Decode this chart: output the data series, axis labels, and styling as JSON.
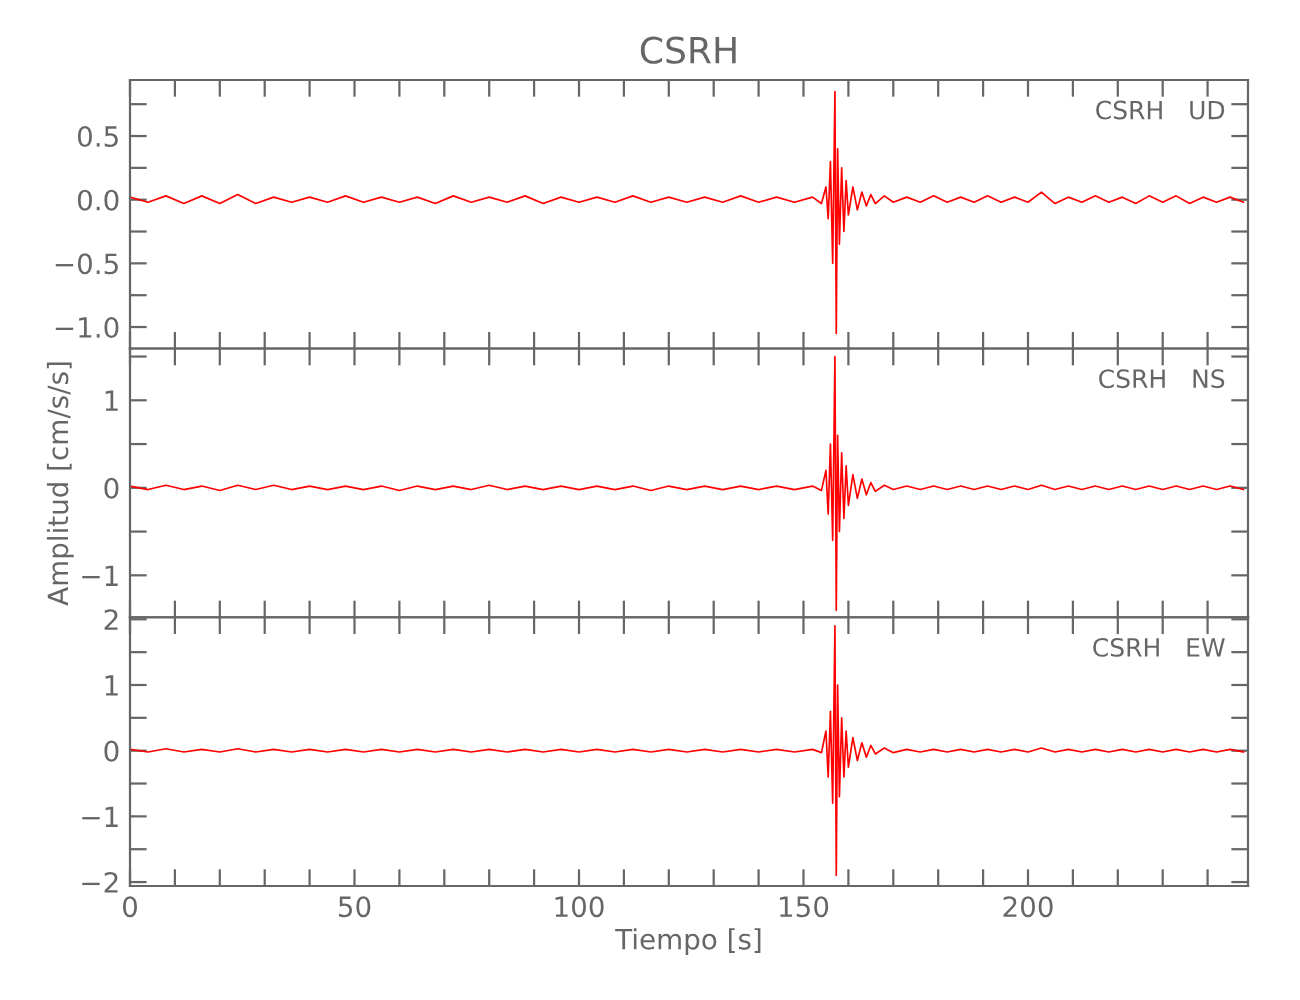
{
  "chart_data": [
    {
      "type": "line",
      "title": "CSRH",
      "tick_labels": "y",
      "grid": false,
      "legend": false,
      "annotations": [
        "CSRH   UD"
      ],
      "xlim": [
        0,
        249
      ],
      "xticks": [
        0,
        {
          "value": 10,
          "label": null
        },
        {
          "value": 20,
          "label": null
        },
        {
          "value": 30,
          "label": null
        },
        {
          "value": 40,
          "label": null
        },
        50,
        {
          "value": 60,
          "label": null
        },
        {
          "value": 70,
          "label": null
        },
        {
          "value": 80,
          "label": null
        },
        {
          "value": 90,
          "label": null
        },
        100,
        {
          "value": 110,
          "label": null
        },
        {
          "value": 120,
          "label": null
        },
        {
          "value": 130,
          "label": null
        },
        {
          "value": 140,
          "label": null
        },
        150,
        {
          "value": 160,
          "label": null
        },
        {
          "value": 170,
          "label": null
        },
        {
          "value": 180,
          "label": null
        },
        {
          "value": 190,
          "label": null
        },
        200,
        {
          "value": 210,
          "label": null
        },
        {
          "value": 220,
          "label": null
        },
        {
          "value": 230,
          "label": null
        },
        {
          "value": 240,
          "label": null
        }
      ],
      "ylim": [
        -1.17,
        0.94
      ],
      "yticks": [
        {
          "value": -1.0,
          "label": "−1.0"
        },
        {
          "value": -0.75,
          "label": null
        },
        {
          "value": -0.5,
          "label": "−0.5"
        },
        {
          "value": -0.25,
          "label": null
        },
        {
          "value": 0.0,
          "label": "0.0"
        },
        {
          "value": 0.25,
          "label": null
        },
        {
          "value": 0.5,
          "label": "0.5"
        },
        {
          "value": 0.75,
          "label": null
        }
      ],
      "series": [
        {
          "color": "#ff0000",
          "x": [
            0,
            4,
            8,
            12,
            16,
            20,
            24,
            28,
            32,
            36,
            40,
            44,
            48,
            52,
            56,
            60,
            64,
            68,
            72,
            76,
            80,
            84,
            88,
            92,
            96,
            100,
            104,
            108,
            112,
            116,
            120,
            124,
            128,
            132,
            136,
            140,
            144,
            148,
            152,
            154,
            155,
            155.5,
            156,
            156.5,
            157,
            157.3,
            157.6,
            158,
            158.5,
            159,
            159.5,
            160,
            161,
            162,
            163,
            164,
            165,
            166,
            168,
            170,
            173,
            176,
            179,
            182,
            185,
            188,
            191,
            194,
            197,
            200,
            203,
            206,
            209,
            212,
            215,
            218,
            221,
            224,
            227,
            230,
            233,
            236,
            239,
            242,
            245,
            248
          ],
          "values": [
            0.02,
            -0.02,
            0.03,
            -0.03,
            0.03,
            -0.03,
            0.04,
            -0.03,
            0.02,
            -0.02,
            0.02,
            -0.02,
            0.03,
            -0.02,
            0.02,
            -0.02,
            0.02,
            -0.03,
            0.03,
            -0.02,
            0.02,
            -0.02,
            0.03,
            -0.03,
            0.02,
            -0.02,
            0.02,
            -0.02,
            0.03,
            -0.02,
            0.02,
            -0.02,
            0.02,
            -0.02,
            0.03,
            -0.02,
            0.02,
            -0.02,
            0.02,
            -0.03,
            0.1,
            -0.15,
            0.3,
            -0.5,
            0.85,
            -1.05,
            0.4,
            -0.35,
            0.25,
            -0.25,
            0.15,
            -0.12,
            0.1,
            -0.08,
            0.06,
            -0.05,
            0.04,
            -0.03,
            0.03,
            -0.02,
            0.02,
            -0.02,
            0.03,
            -0.02,
            0.02,
            -0.02,
            0.03,
            -0.02,
            0.02,
            -0.02,
            0.06,
            -0.03,
            0.02,
            -0.02,
            0.03,
            -0.02,
            0.02,
            -0.03,
            0.03,
            -0.02,
            0.03,
            -0.03,
            0.02,
            -0.02,
            0.02,
            -0.02
          ]
        }
      ]
    },
    {
      "type": "line",
      "ylabel": "Amplitud [cm/s/s]",
      "tick_labels": "y",
      "grid": false,
      "legend": false,
      "annotations": [
        "CSRH   NS"
      ],
      "xlim": [
        0,
        249
      ],
      "xticks": [
        0,
        {
          "value": 10,
          "label": null
        },
        {
          "value": 20,
          "label": null
        },
        {
          "value": 30,
          "label": null
        },
        {
          "value": 40,
          "label": null
        },
        50,
        {
          "value": 60,
          "label": null
        },
        {
          "value": 70,
          "label": null
        },
        {
          "value": 80,
          "label": null
        },
        {
          "value": 90,
          "label": null
        },
        100,
        {
          "value": 110,
          "label": null
        },
        {
          "value": 120,
          "label": null
        },
        {
          "value": 130,
          "label": null
        },
        {
          "value": 140,
          "label": null
        },
        150,
        {
          "value": 160,
          "label": null
        },
        {
          "value": 170,
          "label": null
        },
        {
          "value": 180,
          "label": null
        },
        {
          "value": 190,
          "label": null
        },
        200,
        {
          "value": 210,
          "label": null
        },
        {
          "value": 220,
          "label": null
        },
        {
          "value": 230,
          "label": null
        },
        {
          "value": 240,
          "label": null
        }
      ],
      "ylim": [
        -1.48,
        1.59
      ],
      "yticks": [
        {
          "value": -1,
          "label": "−1"
        },
        {
          "value": -0.5,
          "label": null
        },
        0,
        {
          "value": 0.5,
          "label": null
        },
        1,
        {
          "value": 1.5,
          "label": null
        }
      ],
      "series": [
        {
          "color": "#ff0000",
          "x": [
            0,
            4,
            8,
            12,
            16,
            20,
            24,
            28,
            32,
            36,
            40,
            44,
            48,
            52,
            56,
            60,
            64,
            68,
            72,
            76,
            80,
            84,
            88,
            92,
            96,
            100,
            104,
            108,
            112,
            116,
            120,
            124,
            128,
            132,
            136,
            140,
            144,
            148,
            152,
            154,
            155,
            155.5,
            156,
            156.5,
            157,
            157.3,
            157.6,
            158,
            158.5,
            159,
            159.5,
            160,
            161,
            162,
            163,
            164,
            165,
            166,
            168,
            170,
            173,
            176,
            179,
            182,
            185,
            188,
            191,
            194,
            197,
            200,
            203,
            206,
            209,
            212,
            215,
            218,
            221,
            224,
            227,
            230,
            233,
            236,
            239,
            242,
            245,
            248
          ],
          "values": [
            0.02,
            -0.02,
            0.03,
            -0.02,
            0.02,
            -0.03,
            0.03,
            -0.02,
            0.03,
            -0.02,
            0.02,
            -0.02,
            0.02,
            -0.02,
            0.02,
            -0.03,
            0.02,
            -0.02,
            0.02,
            -0.02,
            0.03,
            -0.02,
            0.02,
            -0.02,
            0.02,
            -0.02,
            0.02,
            -0.02,
            0.02,
            -0.03,
            0.02,
            -0.02,
            0.02,
            -0.02,
            0.02,
            -0.02,
            0.02,
            -0.02,
            0.02,
            -0.03,
            0.2,
            -0.3,
            0.5,
            -0.6,
            1.5,
            -1.4,
            0.6,
            -0.5,
            0.4,
            -0.35,
            0.25,
            -0.2,
            0.15,
            -0.12,
            0.1,
            -0.08,
            0.06,
            -0.04,
            0.03,
            -0.02,
            0.02,
            -0.02,
            0.02,
            -0.02,
            0.02,
            -0.02,
            0.02,
            -0.02,
            0.02,
            -0.02,
            0.03,
            -0.02,
            0.02,
            -0.02,
            0.02,
            -0.02,
            0.02,
            -0.02,
            0.02,
            -0.02,
            0.02,
            -0.02,
            0.02,
            -0.02,
            0.02,
            -0.02
          ]
        }
      ]
    },
    {
      "type": "line",
      "xlabel": "Tiempo [s]",
      "grid": false,
      "legend": false,
      "annotations": [
        "CSRH   EW"
      ],
      "xlim": [
        0,
        249
      ],
      "xticks": [
        0,
        {
          "value": 10,
          "label": null
        },
        {
          "value": 20,
          "label": null
        },
        {
          "value": 30,
          "label": null
        },
        {
          "value": 40,
          "label": null
        },
        50,
        {
          "value": 60,
          "label": null
        },
        {
          "value": 70,
          "label": null
        },
        {
          "value": 80,
          "label": null
        },
        {
          "value": 90,
          "label": null
        },
        100,
        {
          "value": 110,
          "label": null
        },
        {
          "value": 120,
          "label": null
        },
        {
          "value": 130,
          "label": null
        },
        {
          "value": 140,
          "label": null
        },
        150,
        {
          "value": 160,
          "label": null
        },
        {
          "value": 170,
          "label": null
        },
        {
          "value": 180,
          "label": null
        },
        {
          "value": 190,
          "label": null
        },
        200,
        {
          "value": 210,
          "label": null
        },
        {
          "value": 220,
          "label": null
        },
        {
          "value": 230,
          "label": null
        },
        {
          "value": 240,
          "label": null
        }
      ],
      "ylim": [
        -2.06,
        2.03
      ],
      "yticks": [
        {
          "value": -2,
          "label": "−2"
        },
        {
          "value": -1.5,
          "label": null
        },
        {
          "value": -1,
          "label": "−1"
        },
        {
          "value": -0.5,
          "label": null
        },
        0,
        {
          "value": 0.5,
          "label": null
        },
        1,
        {
          "value": 1.5,
          "label": null
        },
        2
      ],
      "series": [
        {
          "color": "#ff0000",
          "x": [
            0,
            4,
            8,
            12,
            16,
            20,
            24,
            28,
            32,
            36,
            40,
            44,
            48,
            52,
            56,
            60,
            64,
            68,
            72,
            76,
            80,
            84,
            88,
            92,
            96,
            100,
            104,
            108,
            112,
            116,
            120,
            124,
            128,
            132,
            136,
            140,
            144,
            148,
            152,
            154,
            155,
            155.5,
            156,
            156.5,
            157,
            157.3,
            157.6,
            158,
            158.5,
            159,
            159.5,
            160,
            161,
            162,
            163,
            164,
            165,
            166,
            168,
            170,
            173,
            176,
            179,
            182,
            185,
            188,
            191,
            194,
            197,
            200,
            203,
            206,
            209,
            212,
            215,
            218,
            221,
            224,
            227,
            230,
            233,
            236,
            239,
            242,
            245,
            248
          ],
          "values": [
            0.02,
            -0.02,
            0.03,
            -0.02,
            0.02,
            -0.02,
            0.03,
            -0.02,
            0.02,
            -0.02,
            0.02,
            -0.02,
            0.02,
            -0.02,
            0.02,
            -0.02,
            0.02,
            -0.02,
            0.02,
            -0.02,
            0.02,
            -0.02,
            0.02,
            -0.02,
            0.02,
            -0.02,
            0.02,
            -0.02,
            0.02,
            -0.02,
            0.02,
            -0.02,
            0.02,
            -0.02,
            0.02,
            -0.02,
            0.02,
            -0.02,
            0.02,
            -0.03,
            0.3,
            -0.4,
            0.6,
            -0.8,
            1.9,
            -1.9,
            1.0,
            -0.7,
            0.5,
            -0.4,
            0.3,
            -0.25,
            0.2,
            -0.15,
            0.12,
            -0.1,
            0.08,
            -0.05,
            0.04,
            -0.03,
            0.02,
            -0.02,
            0.02,
            -0.02,
            0.02,
            -0.02,
            0.02,
            -0.02,
            0.02,
            -0.02,
            0.04,
            -0.02,
            0.02,
            -0.02,
            0.02,
            -0.02,
            0.02,
            -0.02,
            0.02,
            -0.02,
            0.02,
            -0.02,
            0.02,
            -0.02,
            0.02,
            -0.02
          ]
        }
      ]
    }
  ]
}
